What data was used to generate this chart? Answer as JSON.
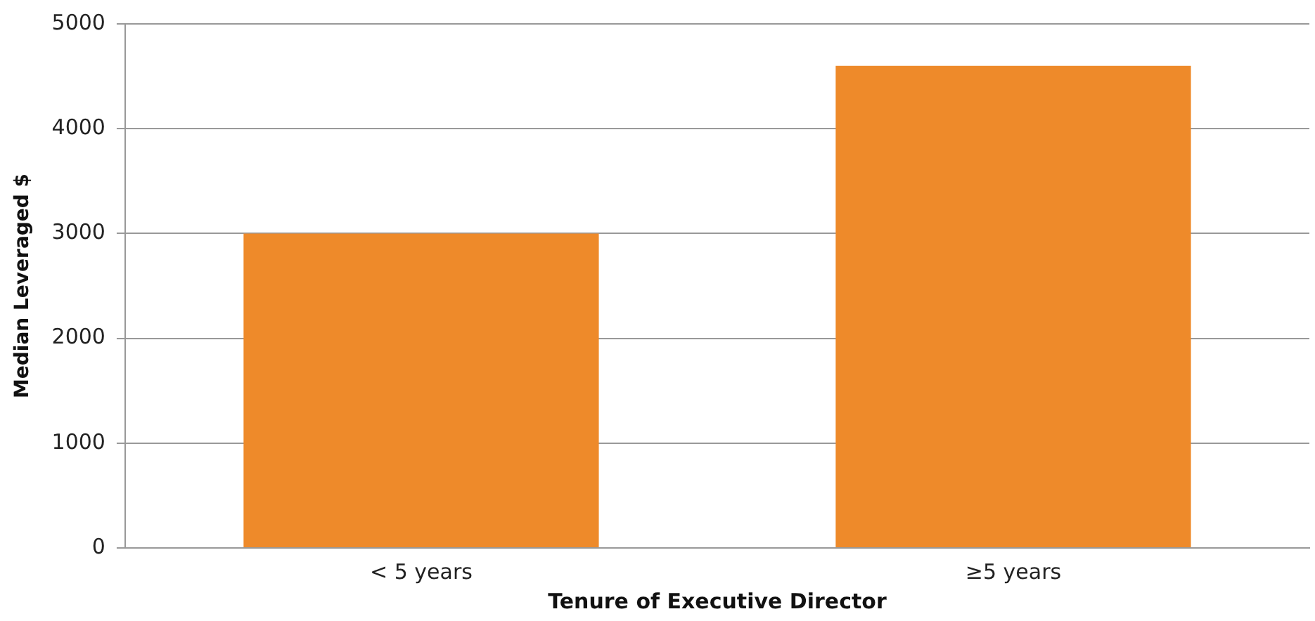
{
  "chart_data": {
    "type": "bar",
    "xlabel": "Tenure of Executive Director",
    "ylabel": "Median Leveraged $",
    "categories": [
      "< 5 years",
      "≥5 years"
    ],
    "values": [
      3000,
      4600
    ],
    "color": "#ee8a2a",
    "ylim": [
      0,
      5000
    ],
    "yticks": [
      0,
      1000,
      2000,
      3000,
      4000,
      5000
    ],
    "grid": "y",
    "legend": false
  }
}
